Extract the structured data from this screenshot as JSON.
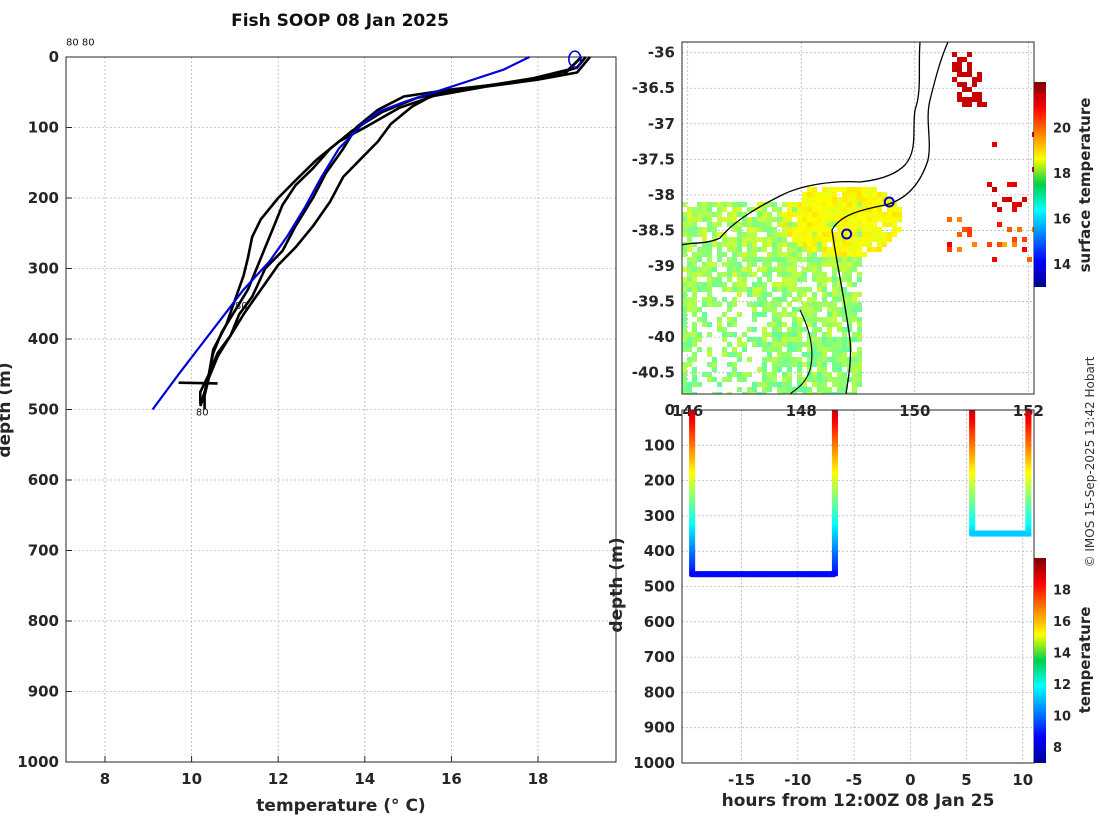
{
  "title": "Fish SOOP 08 Jan 2025",
  "watermark": "© IMOS 15-Sep-2025 13:42 Hobart",
  "chart_data": [
    {
      "id": "profile",
      "type": "line",
      "xlabel": "temperature (° C)",
      "ylabel": "depth (m)",
      "xlim": [
        7.1,
        19.8
      ],
      "ylim": [
        0,
        1000
      ],
      "xticks": [
        8,
        10,
        12,
        14,
        16,
        18
      ],
      "yticks": [
        0,
        100,
        200,
        300,
        400,
        500,
        600,
        700,
        800,
        900,
        1000
      ],
      "annotations": [
        {
          "text": "80 80",
          "x": 7.1,
          "y": -22
        },
        {
          "text": "80",
          "x": 11.0,
          "y": 352
        },
        {
          "text": "80",
          "x": 10.1,
          "y": 503
        }
      ],
      "series": [
        {
          "name": "profile-1",
          "color": "#000000",
          "points": [
            [
              19.1,
              0
            ],
            [
              18.9,
              15
            ],
            [
              18.2,
              28
            ],
            [
              17.2,
              38
            ],
            [
              16.0,
              46
            ],
            [
              14.9,
              56
            ],
            [
              14.3,
              75
            ],
            [
              13.8,
              100
            ],
            [
              13.5,
              130
            ],
            [
              13.1,
              165
            ],
            [
              12.8,
              200
            ],
            [
              12.4,
              240
            ],
            [
              12.1,
              275
            ],
            [
              11.7,
              300
            ],
            [
              11.4,
              340
            ],
            [
              11.1,
              365
            ],
            [
              10.9,
              395
            ],
            [
              10.6,
              420
            ],
            [
              10.4,
              450
            ],
            [
              10.3,
              480
            ],
            [
              10.2,
              495
            ]
          ]
        },
        {
          "name": "profile-2",
          "color": "#000000",
          "points": [
            [
              19.0,
              0
            ],
            [
              18.7,
              18
            ],
            [
              17.9,
              30
            ],
            [
              16.9,
              40
            ],
            [
              15.7,
              50
            ],
            [
              15.1,
              70
            ],
            [
              14.6,
              95
            ],
            [
              14.3,
              120
            ],
            [
              13.9,
              145
            ],
            [
              13.5,
              170
            ],
            [
              13.2,
              205
            ],
            [
              12.8,
              240
            ],
            [
              12.4,
              270
            ],
            [
              12.0,
              295
            ],
            [
              11.6,
              330
            ],
            [
              11.2,
              365
            ],
            [
              10.9,
              395
            ],
            [
              10.6,
              425
            ],
            [
              10.4,
              455
            ],
            [
              10.3,
              480
            ],
            [
              10.3,
              500
            ]
          ]
        },
        {
          "name": "profile-3",
          "color": "#000000",
          "points": [
            [
              19.2,
              0
            ],
            [
              18.9,
              22
            ],
            [
              18.0,
              32
            ],
            [
              16.8,
              42
            ],
            [
              15.6,
              55
            ],
            [
              14.8,
              72
            ],
            [
              14.0,
              100
            ],
            [
              13.4,
              120
            ],
            [
              12.9,
              145
            ],
            [
              12.4,
              175
            ],
            [
              12.0,
              200
            ],
            [
              11.6,
              230
            ],
            [
              11.4,
              255
            ],
            [
              11.3,
              285
            ],
            [
              11.2,
              310
            ],
            [
              11.0,
              345
            ],
            [
              10.8,
              380
            ],
            [
              10.5,
              415
            ],
            [
              10.4,
              450
            ],
            [
              10.3,
              475
            ],
            [
              10.2,
              495
            ]
          ]
        },
        {
          "name": "profile-4",
          "color": "#000000",
          "points": [
            [
              19.0,
              0
            ],
            [
              18.6,
              25
            ],
            [
              17.6,
              34
            ],
            [
              16.4,
              44
            ],
            [
              15.2,
              58
            ],
            [
              14.4,
              78
            ],
            [
              13.7,
              105
            ],
            [
              13.2,
              130
            ],
            [
              12.8,
              158
            ],
            [
              12.4,
              182
            ],
            [
              12.1,
              210
            ],
            [
              11.9,
              240
            ],
            [
              11.7,
              270
            ],
            [
              11.5,
              300
            ],
            [
              11.3,
              330
            ],
            [
              11.0,
              360
            ],
            [
              10.7,
              390
            ],
            [
              10.5,
              420
            ],
            [
              10.4,
              450
            ],
            [
              10.2,
              475
            ],
            [
              10.2,
              492
            ]
          ]
        },
        {
          "name": "xbt-drop",
          "color": "#000000",
          "points": [
            [
              9.7,
              462
            ],
            [
              10.6,
              463
            ]
          ]
        },
        {
          "name": "mean",
          "color": "#0000dd",
          "points": [
            [
              17.8,
              0
            ],
            [
              17.2,
              18
            ],
            [
              16.4,
              34
            ],
            [
              15.6,
              50
            ],
            [
              14.9,
              64
            ],
            [
              14.3,
              78
            ],
            [
              13.9,
              98
            ],
            [
              13.4,
              130
            ],
            [
              13.0,
              170
            ],
            [
              12.6,
              215
            ],
            [
              12.2,
              255
            ],
            [
              11.8,
              290
            ],
            [
              11.2,
              330
            ],
            [
              10.7,
              370
            ],
            [
              10.2,
              410
            ],
            [
              9.7,
              450
            ],
            [
              9.4,
              475
            ],
            [
              9.1,
              500
            ]
          ]
        }
      ],
      "markers": [
        {
          "x": 18.85,
          "y": 3
        }
      ]
    },
    {
      "id": "map",
      "type": "heatmap",
      "xlim": [
        145.9,
        152.1
      ],
      "ylim": [
        -40.8,
        -35.85
      ],
      "xticks": [
        146,
        148,
        150,
        152
      ],
      "xtick_labels": [
        "146",
        "148",
        "150",
        "152"
      ],
      "yticks": [
        -36,
        -36.5,
        -37,
        -37.5,
        -38,
        -38.5,
        -39,
        -39.5,
        -40,
        -40.5
      ],
      "colorbar": {
        "label": "surface temperature",
        "range": [
          13,
          22
        ],
        "ticks": [
          14,
          16,
          18,
          20
        ]
      },
      "positions": [
        {
          "lon": 149.55,
          "lat": -38.1
        },
        {
          "lon": 148.8,
          "lat": -38.55
        }
      ]
    },
    {
      "id": "time-depth",
      "type": "scatter",
      "xlabel": "hours from 12:00Z 08 Jan 25",
      "ylabel": "depth (m)",
      "xlim": [
        -20.3,
        11
      ],
      "ylim": [
        0,
        1000
      ],
      "xticks": [
        -15,
        -10,
        -5,
        0,
        5,
        10
      ],
      "yticks": [
        0,
        100,
        200,
        300,
        400,
        500,
        600,
        700,
        800,
        900,
        1000
      ],
      "colorbar": {
        "label": "temperature",
        "range": [
          7,
          20
        ],
        "ticks": [
          8,
          10,
          12,
          14,
          16,
          18
        ]
      },
      "tracks": [
        {
          "x0": -19.4,
          "x1": -6.7,
          "bottom": 465
        },
        {
          "x0": 5.5,
          "x1": 10.5,
          "bottom": 350
        }
      ]
    }
  ]
}
